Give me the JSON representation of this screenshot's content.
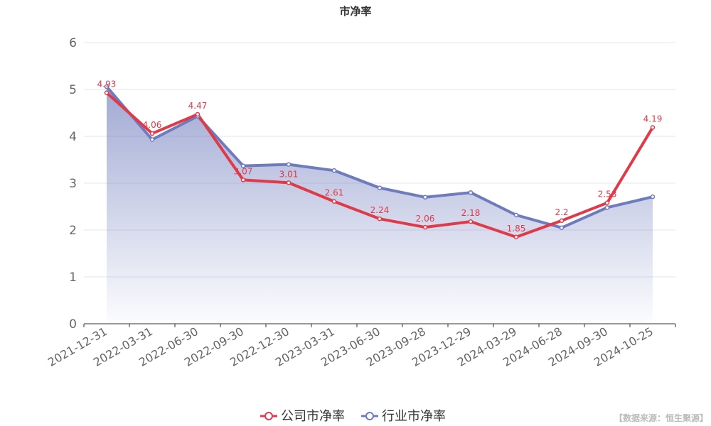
{
  "chart_data": {
    "type": "line",
    "title": "市净率",
    "categories": [
      "2021-12-31",
      "2022-03-31",
      "2022-06-30",
      "2022-09-30",
      "2022-12-30",
      "2023-03-31",
      "2023-06-30",
      "2023-09-28",
      "2023-12-29",
      "2024-03-29",
      "2024-06-28",
      "2024-09-30",
      "2024-10-25"
    ],
    "series": [
      {
        "name": "公司市净率",
        "color": "#e03a48",
        "values": [
          4.93,
          4.06,
          4.47,
          3.07,
          3.01,
          2.61,
          2.24,
          2.06,
          2.18,
          1.85,
          2.2,
          2.58,
          4.19
        ],
        "labels": [
          "4.93",
          "4.06",
          "4.47",
          "3.07",
          "3.01",
          "2.61",
          "2.24",
          "2.06",
          "2.18",
          "1.85",
          "2.2",
          "2.58",
          "4.19"
        ]
      },
      {
        "name": "行业市净率",
        "color": "#6e7bbd",
        "area": true,
        "values": [
          5.06,
          3.93,
          4.43,
          3.37,
          3.4,
          3.27,
          2.9,
          2.7,
          2.8,
          2.32,
          2.05,
          2.48,
          2.71
        ]
      }
    ],
    "ylim": [
      0,
      6
    ],
    "yticks": [
      "0",
      "1",
      "2",
      "3",
      "4",
      "5",
      "6"
    ],
    "grid": true,
    "legend_position": "bottom"
  },
  "source_note": "【数据来源：恒生聚源】"
}
